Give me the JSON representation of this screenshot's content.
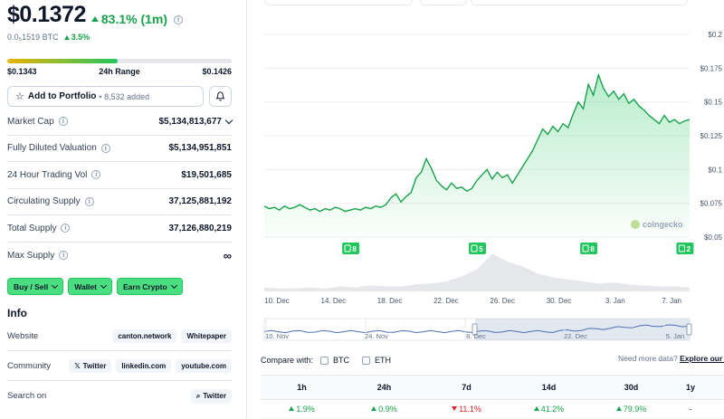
{
  "price": {
    "value": "$0.1372",
    "change": "83.1% (1m)",
    "btc_value": "0.0₅1519 BTC",
    "btc_change": "3.5%"
  },
  "range": {
    "low": "$0.1343",
    "label": "24h Range",
    "high": "$0.1426",
    "fill_fraction": 0.49
  },
  "portfolio": {
    "label": "Add to Portfolio",
    "added": "• 8,532 added"
  },
  "stats": [
    {
      "label": "Market Cap",
      "value": "$5,134,813,677"
    },
    {
      "label": "Fully Diluted Valuation",
      "value": "$5,134,951,851"
    },
    {
      "label": "24 Hour Trading Vol",
      "value": "$19,501,685"
    },
    {
      "label": "Circulating Supply",
      "value": "37,125,881,192"
    },
    {
      "label": "Total Supply",
      "value": "37,126,880,219"
    },
    {
      "label": "Max Supply",
      "value": "∞"
    }
  ],
  "cta": {
    "buy_sell": "Buy / Sell",
    "wallet": "Wallet",
    "earn": "Earn Crypto"
  },
  "info": {
    "title": "Info",
    "website_label": "Website",
    "website_links": [
      "canton.network",
      "Whitepaper"
    ],
    "community_label": "Community",
    "community_links": [
      "Twitter",
      "linkedin.com",
      "youtube.com"
    ],
    "search_label": "Search on",
    "search_link": "Twitter"
  },
  "chart_data": {
    "type": "line",
    "y_ticks": [
      "$0.2",
      "$0.175",
      "$0.15",
      "$0.125",
      "$0.1",
      "$0.075",
      "$0.05"
    ],
    "ylim": [
      0.05,
      0.2
    ],
    "x_ticks": [
      "10. Dec",
      "14. Dec",
      "18. Dec",
      "22. Dec",
      "26. Dec",
      "30. Dec",
      "3. Jan",
      "7. Jan"
    ],
    "navigator_ticks": [
      "10. Nov",
      "24. Nov",
      "8. Dec",
      "22. Dec",
      "5. Jan"
    ],
    "watermark": "coingecko",
    "series": [
      {
        "values": [
          0.073,
          0.071,
          0.072,
          0.07,
          0.073,
          0.071,
          0.072,
          0.074,
          0.072,
          0.07,
          0.071,
          0.069,
          0.071,
          0.07,
          0.072,
          0.071,
          0.069,
          0.07,
          0.071,
          0.07,
          0.072,
          0.071,
          0.073,
          0.072,
          0.074,
          0.079,
          0.082,
          0.076,
          0.08,
          0.083,
          0.094,
          0.098,
          0.108,
          0.101,
          0.092,
          0.088,
          0.085,
          0.09,
          0.086,
          0.087,
          0.084,
          0.086,
          0.092,
          0.096,
          0.1,
          0.093,
          0.098,
          0.094,
          0.096,
          0.09,
          0.096,
          0.102,
          0.108,
          0.114,
          0.122,
          0.13,
          0.126,
          0.132,
          0.128,
          0.134,
          0.131,
          0.141,
          0.15,
          0.145,
          0.163,
          0.155,
          0.17,
          0.16,
          0.154,
          0.158,
          0.152,
          0.156,
          0.149,
          0.152,
          0.147,
          0.144,
          0.14,
          0.137,
          0.134,
          0.14,
          0.135,
          0.137,
          0.134,
          0.136,
          0.137
        ]
      }
    ],
    "volume": [
      0.04,
      0.03,
      0.03,
      0.04,
      0.03,
      0.05,
      0.04,
      0.06,
      0.05,
      0.05,
      0.07,
      0.08,
      0.1,
      0.15,
      0.22,
      0.38,
      0.3,
      0.25,
      0.18,
      0.14,
      0.12,
      0.1,
      0.08,
      0.09,
      0.07,
      0.06,
      0.05,
      0.05,
      0.04
    ],
    "events": [
      {
        "x_index": 17,
        "count": "8"
      },
      {
        "x_index": 42,
        "count": "5"
      },
      {
        "x_index": 64,
        "count": "8"
      },
      {
        "x_index": 83,
        "count": "2"
      }
    ]
  },
  "compare": {
    "label": "Compare with:",
    "options": [
      "BTC",
      "ETH"
    ],
    "need_more": "Need more data?",
    "explore": "Explore our API"
  },
  "performance": {
    "headers": [
      "1h",
      "24h",
      "7d",
      "14d",
      "30d",
      "1y"
    ],
    "values": [
      {
        "v": "1.9%",
        "dir": "up"
      },
      {
        "v": "0.9%",
        "dir": "up"
      },
      {
        "v": "11.1%",
        "dir": "down"
      },
      {
        "v": "41.2%",
        "dir": "up"
      },
      {
        "v": "79.9%",
        "dir": "up"
      },
      {
        "v": "-",
        "dir": "none"
      }
    ]
  },
  "colors": {
    "up": "#16a34a",
    "down": "#dc2626",
    "line": "#16a34a",
    "accent": "#4ade80"
  }
}
